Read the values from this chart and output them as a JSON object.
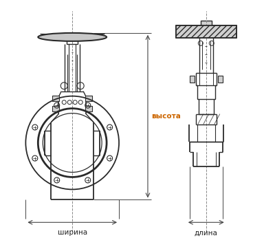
{
  "bg_color": "#ffffff",
  "line_color": "#2a2a2a",
  "dim_line_color": "#444444",
  "text_color": "#222222",
  "label_vysota": "высота",
  "label_shirina": "ширина",
  "label_dlina": "длина",
  "fig_width": 4.0,
  "fig_height": 3.46,
  "dpi": 100
}
